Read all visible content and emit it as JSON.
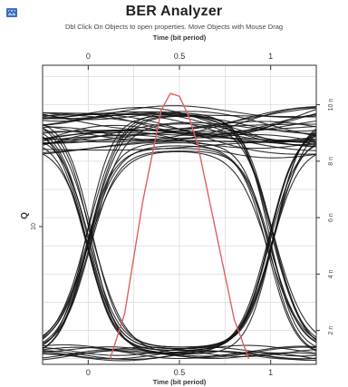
{
  "window": {
    "title": "BER Analyzer",
    "subtitle": "Dbl Click On Objects to open properties.  Move Objects with Mouse Drag"
  },
  "icons": {
    "app": "ber-analyzer-app-icon"
  },
  "colors": {
    "eye_traces": "#111111",
    "q_curve": "#e06060",
    "grid": "#d8d8d8",
    "frame": "#333333"
  },
  "chart_data": {
    "type": "line",
    "subtype": "eye-diagram",
    "x_top": {
      "label": "Time (bit period)",
      "ticks": [
        0,
        0.5,
        1
      ],
      "tick_labels": [
        "0",
        "0.5",
        "1"
      ],
      "range": [
        -0.25,
        1.25
      ]
    },
    "x_bottom": {
      "label": "Time (bit period)",
      "ticks": [
        0,
        0.5,
        1
      ],
      "tick_labels": [
        "0",
        "0.5",
        "1"
      ],
      "range": [
        -0.25,
        1.25
      ]
    },
    "y_left": {
      "label": "Q",
      "ticks": [
        10
      ],
      "tick_labels": [
        "10"
      ]
    },
    "y_right": {
      "ticks": [
        2,
        4,
        6,
        8,
        10
      ],
      "tick_labels": [
        "2 n",
        "4 n",
        "6 n",
        "8 n",
        "10 n"
      ],
      "range": [
        0.8,
        11.4
      ]
    },
    "grid": true,
    "series": [
      {
        "role": "q-factor-curve",
        "x": [
          0.12,
          0.2,
          0.3,
          0.4,
          0.45,
          0.5,
          0.55,
          0.6,
          0.7,
          0.8,
          0.88
        ],
        "y": [
          1.0,
          2.6,
          6.6,
          9.8,
          10.4,
          10.3,
          9.6,
          8.6,
          5.5,
          2.4,
          1.0
        ]
      }
    ],
    "eye": {
      "trace_count": 58,
      "ones_level_range": [
        8.3,
        9.9
      ],
      "zeros_level_range": [
        1.0,
        1.4
      ],
      "crossing_times": [
        0.0,
        1.0
      ],
      "crossing_level": 4.9
    }
  }
}
